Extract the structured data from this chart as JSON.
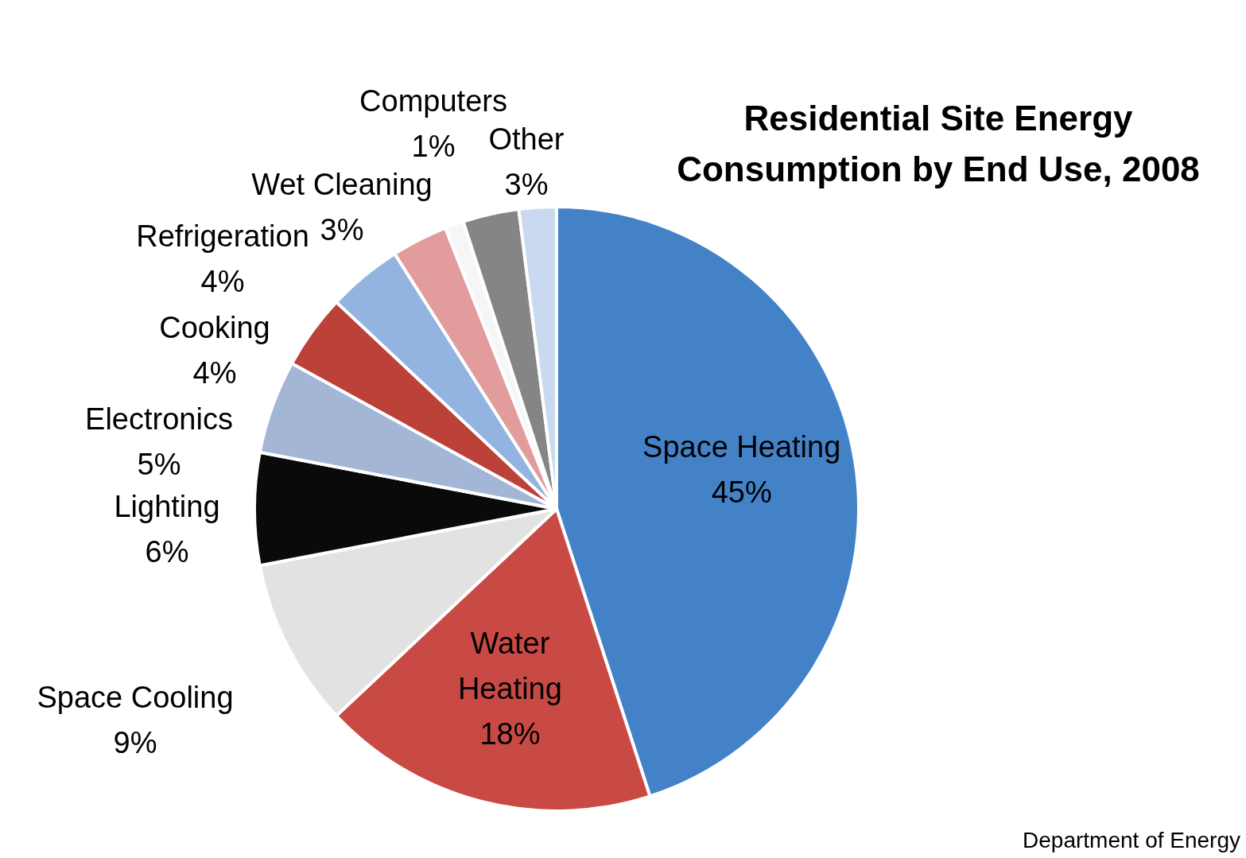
{
  "chart_data": {
    "type": "pie",
    "title": "Residential Site Energy Consumption by End Use, 2008",
    "categories": [
      "Space Heating",
      "Water Heating",
      "Space Cooling",
      "Lighting",
      "Electronics",
      "Cooking",
      "Refrigeration",
      "Wet Cleaning",
      "Computers",
      "Other",
      null
    ],
    "values": [
      45,
      18,
      9,
      6,
      5,
      4,
      4,
      3,
      1,
      3,
      2
    ],
    "value_labels": [
      "45%",
      "18%",
      "9%",
      "6%",
      "5%",
      "4%",
      "4%",
      "3%",
      "1%",
      "3%",
      null
    ],
    "colors": [
      "#4482c8",
      "#c94a44",
      "#e2e2e2",
      "#0a0a0a",
      "#a3b6d6",
      "#bb4139",
      "#93b3e0",
      "#e29c9b",
      "#f6f6f6",
      "#858585",
      "#c9d9f0"
    ],
    "legend": false,
    "annotations": [
      "Department of Energy"
    ]
  }
}
